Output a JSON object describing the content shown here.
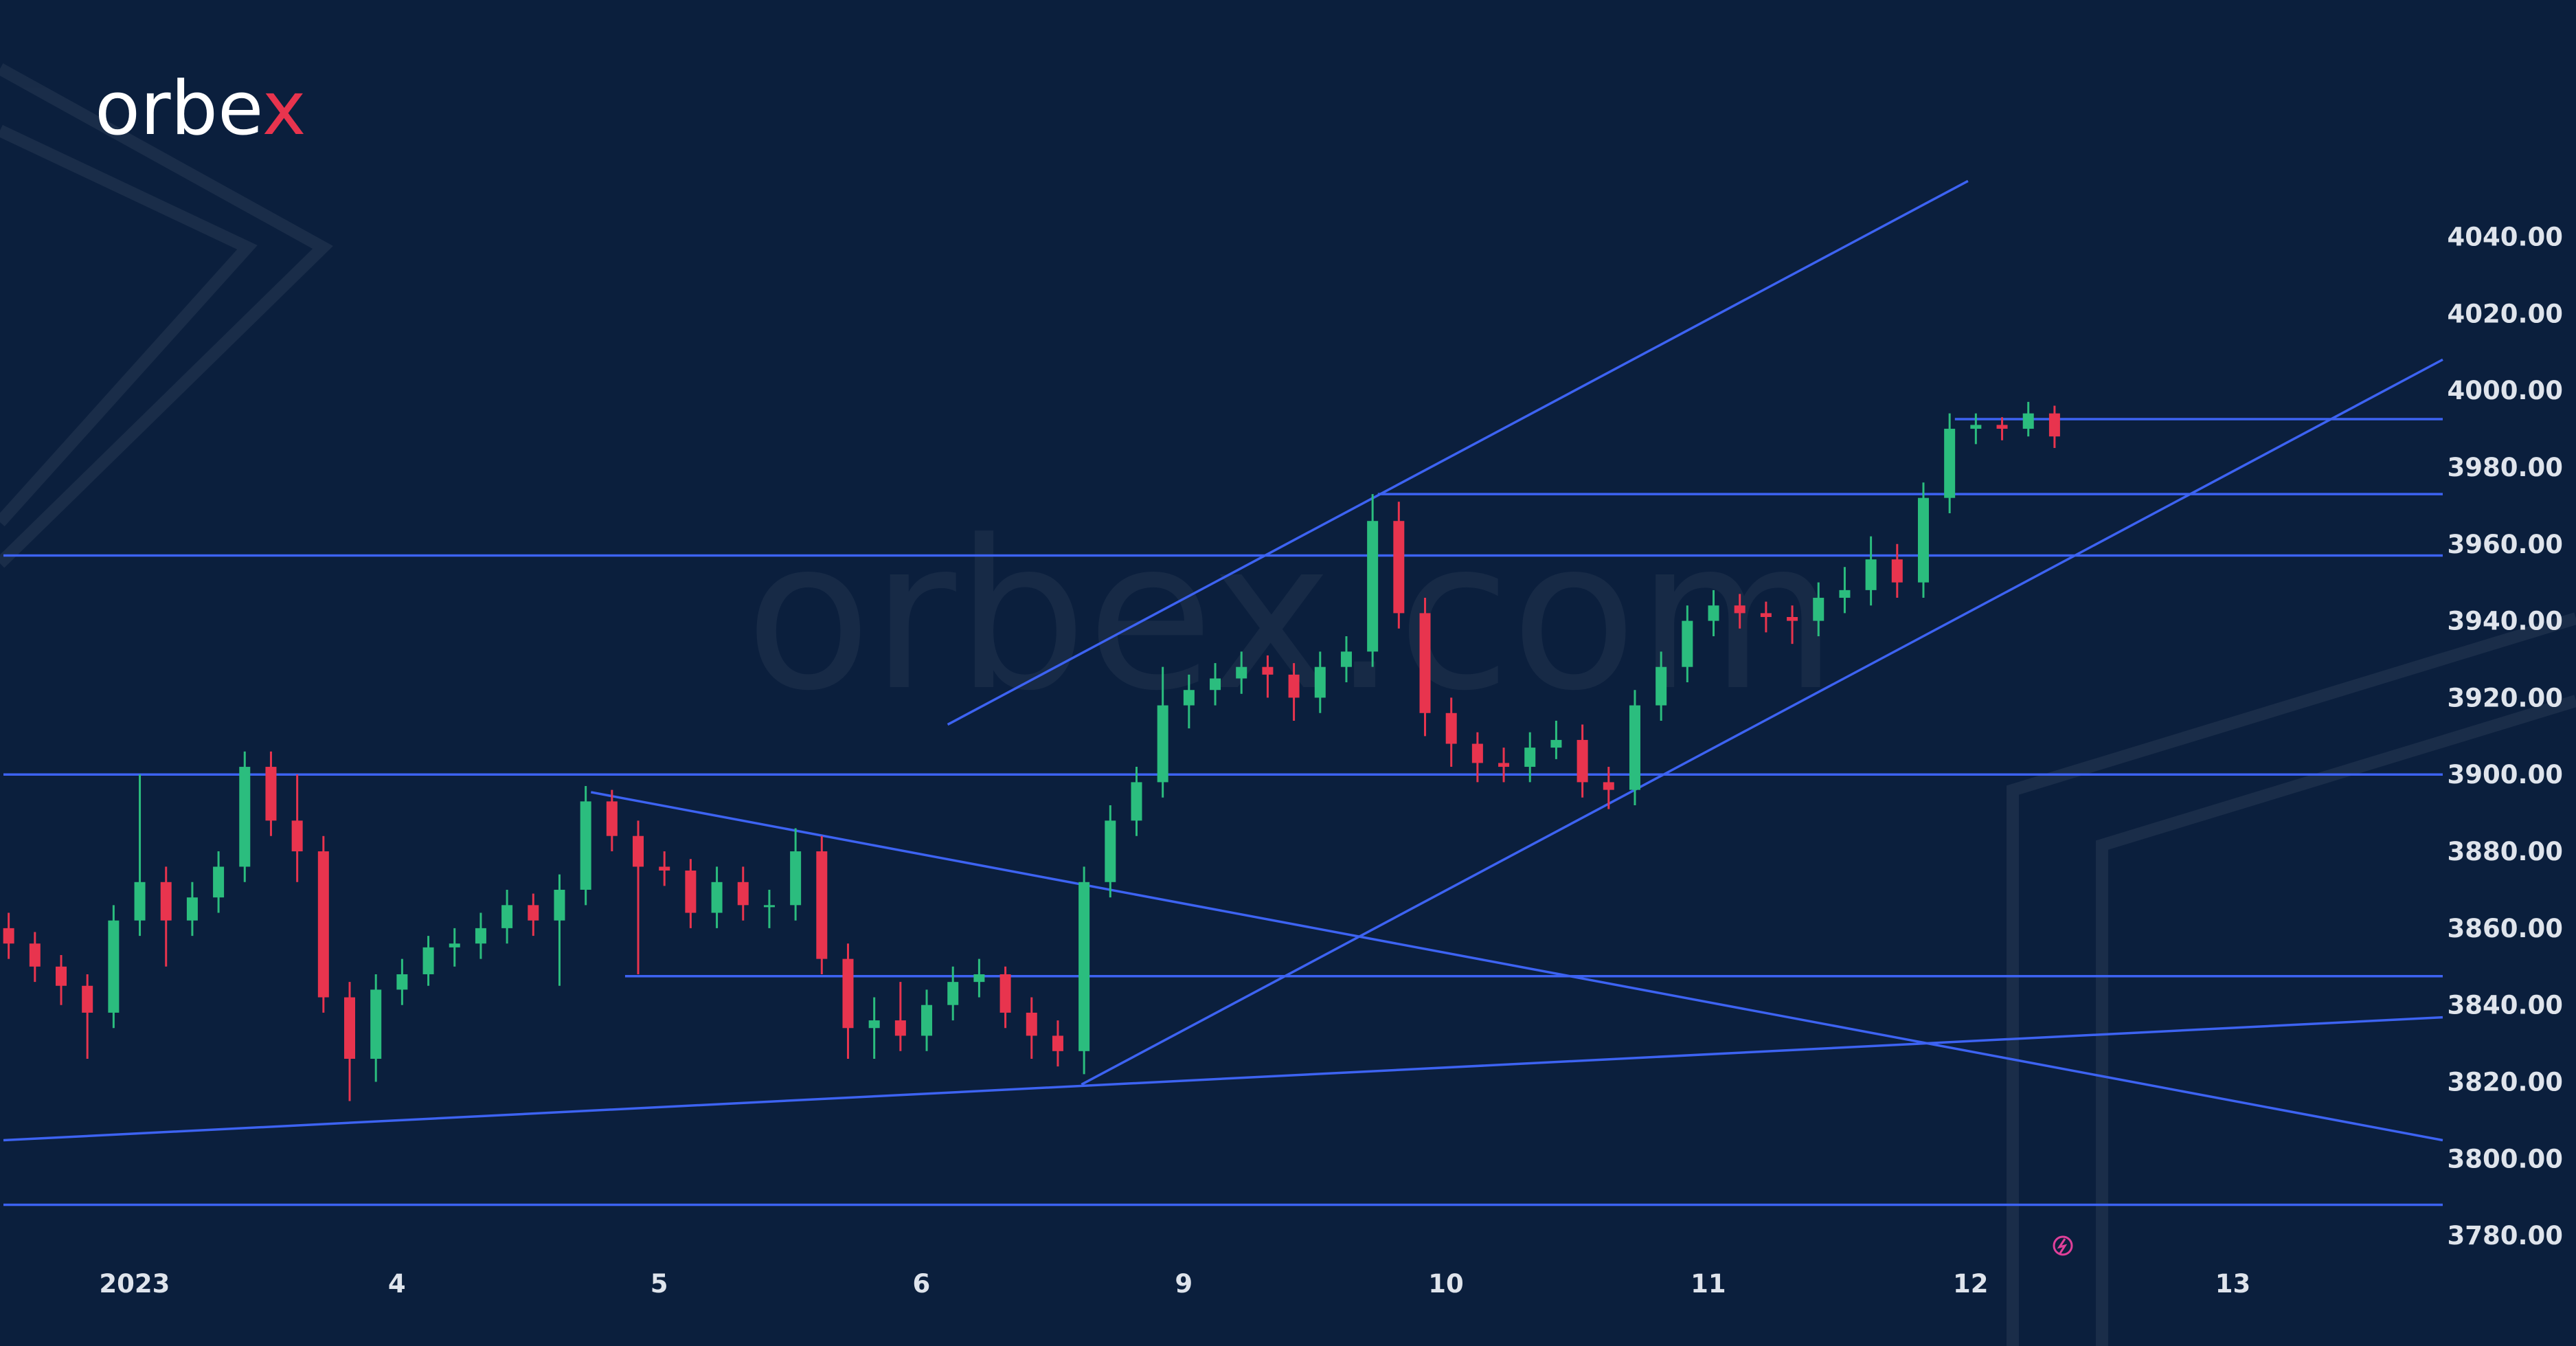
{
  "logo": {
    "main": "orbe",
    "accent": "x"
  },
  "watermark": "orbex.com",
  "chart_data": {
    "type": "candlestick",
    "colors": {
      "up": "#2bbd7e",
      "down": "#e8344e",
      "line": "#3d63f2"
    },
    "xlim": [
      -0.5,
      8.8
    ],
    "ylim": [
      3760,
      4100
    ],
    "xticks": [
      {
        "value": 0,
        "label": "2023"
      },
      {
        "value": 1,
        "label": "4"
      },
      {
        "value": 2,
        "label": "5"
      },
      {
        "value": 3,
        "label": "6"
      },
      {
        "value": 4,
        "label": "9"
      },
      {
        "value": 5,
        "label": "10"
      },
      {
        "value": 6,
        "label": "11"
      },
      {
        "value": 7,
        "label": "12"
      },
      {
        "value": 8,
        "label": "13"
      }
    ],
    "yticks": [
      {
        "value": 3780,
        "label": "3780.00"
      },
      {
        "value": 3800,
        "label": "3800.00"
      },
      {
        "value": 3820,
        "label": "3820.00"
      },
      {
        "value": 3840,
        "label": "3840.00"
      },
      {
        "value": 3860,
        "label": "3860.00"
      },
      {
        "value": 3880,
        "label": "3880.00"
      },
      {
        "value": 3900,
        "label": "3900.00"
      },
      {
        "value": 3920,
        "label": "3920.00"
      },
      {
        "value": 3940,
        "label": "3940.00"
      },
      {
        "value": 3960,
        "label": "3960.00"
      },
      {
        "value": 3980,
        "label": "3980.00"
      },
      {
        "value": 4000,
        "label": "4000.00"
      },
      {
        "value": 4020,
        "label": "4020.00"
      },
      {
        "value": 4040,
        "label": "4040.00"
      }
    ],
    "candles": {
      "x": [
        -0.48,
        -0.38,
        -0.28,
        -0.18,
        -0.08,
        0.02,
        0.12,
        0.22,
        0.32,
        0.42,
        0.52,
        0.62,
        0.72,
        0.82,
        0.92,
        1.02,
        1.12,
        1.22,
        1.32,
        1.42,
        1.52,
        1.62,
        1.72,
        1.82,
        1.92,
        2.02,
        2.12,
        2.22,
        2.32,
        2.42,
        2.52,
        2.62,
        2.72,
        2.82,
        2.92,
        3.02,
        3.12,
        3.22,
        3.32,
        3.42,
        3.52,
        3.62,
        3.72,
        3.82,
        3.92,
        4.02,
        4.12,
        4.22,
        4.32,
        4.42,
        4.52,
        4.62,
        4.72,
        4.82,
        4.92,
        5.02,
        5.12,
        5.22,
        5.32,
        5.42,
        5.52,
        5.62,
        5.72,
        5.82,
        5.92,
        6.02,
        6.12,
        6.22,
        6.32,
        6.42,
        6.52,
        6.62,
        6.72,
        6.82,
        6.92,
        7.02,
        7.12,
        7.22,
        7.32
      ],
      "open": [
        3860,
        3856,
        3850,
        3845,
        3838,
        3862,
        3872,
        3862,
        3868,
        3876,
        3902,
        3888,
        3880,
        3842,
        3826,
        3844,
        3848,
        3855,
        3856,
        3860,
        3866,
        3862,
        3870,
        3893,
        3884,
        3876,
        3875,
        3864,
        3872,
        3866,
        3866,
        3880,
        3852,
        3834,
        3836,
        3832,
        3840,
        3846,
        3848,
        3838,
        3832,
        3828,
        3872,
        3888,
        3898,
        3918,
        3922,
        3925,
        3928,
        3926,
        3920,
        3928,
        3932,
        3966,
        3942,
        3916,
        3908,
        3903,
        3902,
        3907,
        3909,
        3898,
        3896,
        3918,
        3928,
        3940,
        3944,
        3942,
        3941,
        3940,
        3946,
        3948,
        3956,
        3950,
        3972,
        3990,
        3991,
        3990,
        3994
      ],
      "high": [
        3864,
        3859,
        3853,
        3848,
        3866,
        3900,
        3876,
        3872,
        3880,
        3906,
        3906,
        3900,
        3884,
        3846,
        3848,
        3852,
        3858,
        3860,
        3864,
        3870,
        3869,
        3874,
        3897,
        3896,
        3888,
        3880,
        3878,
        3876,
        3876,
        3870,
        3886,
        3884,
        3856,
        3842,
        3846,
        3844,
        3850,
        3852,
        3850,
        3842,
        3836,
        3876,
        3892,
        3902,
        3928,
        3926,
        3929,
        3932,
        3931,
        3929,
        3932,
        3936,
        3973,
        3971,
        3946,
        3920,
        3911,
        3907,
        3911,
        3914,
        3913,
        3902,
        3922,
        3932,
        3944,
        3948,
        3947,
        3945,
        3944,
        3950,
        3954,
        3962,
        3960,
        3976,
        3994,
        3994,
        3993,
        3997,
        3996
      ],
      "low": [
        3852,
        3846,
        3840,
        3826,
        3834,
        3858,
        3850,
        3858,
        3864,
        3872,
        3884,
        3872,
        3838,
        3815,
        3820,
        3840,
        3845,
        3850,
        3852,
        3856,
        3858,
        3845,
        3866,
        3880,
        3848,
        3871,
        3860,
        3860,
        3862,
        3860,
        3862,
        3848,
        3826,
        3826,
        3828,
        3828,
        3836,
        3842,
        3834,
        3826,
        3824,
        3822,
        3868,
        3884,
        3894,
        3912,
        3918,
        3921,
        3920,
        3914,
        3916,
        3924,
        3928,
        3938,
        3910,
        3902,
        3898,
        3898,
        3898,
        3904,
        3894,
        3891,
        3892,
        3914,
        3924,
        3936,
        3938,
        3937,
        3934,
        3936,
        3942,
        3944,
        3946,
        3946,
        3968,
        3986,
        3987,
        3988,
        3985
      ],
      "close": [
        3856,
        3850,
        3845,
        3838,
        3862,
        3872,
        3862,
        3868,
        3876,
        3902,
        3888,
        3880,
        3842,
        3826,
        3844,
        3848,
        3855,
        3856,
        3860,
        3866,
        3862,
        3870,
        3893,
        3884,
        3876,
        3875,
        3864,
        3872,
        3866,
        3866,
        3880,
        3852,
        3834,
        3836,
        3832,
        3840,
        3846,
        3848,
        3838,
        3832,
        3828,
        3872,
        3888,
        3898,
        3918,
        3922,
        3925,
        3928,
        3926,
        3920,
        3928,
        3932,
        3966,
        3942,
        3916,
        3908,
        3903,
        3902,
        3907,
        3909,
        3898,
        3896,
        3918,
        3928,
        3940,
        3944,
        3942,
        3941,
        3940,
        3946,
        3948,
        3956,
        3950,
        3972,
        3990,
        3991,
        3990,
        3994,
        3988
      ]
    },
    "lines": [
      {
        "x": [
          -0.5,
          8.8
        ],
        "y": [
          3957,
          3957
        ]
      },
      {
        "x": [
          -0.5,
          8.8
        ],
        "y": [
          3900,
          3900
        ]
      },
      {
        "x": [
          -0.5,
          8.8
        ],
        "y": [
          3788,
          3788
        ]
      },
      {
        "x": [
          1.87,
          8.8
        ],
        "y": [
          3847.5,
          3847.5
        ]
      },
      {
        "x": [
          4.74,
          8.8
        ],
        "y": [
          3973,
          3973
        ]
      },
      {
        "x": [
          6.94,
          8.8
        ],
        "y": [
          3992.5,
          3992.5
        ]
      },
      {
        "x": [
          3.1,
          6.99
        ],
        "y": [
          3913,
          4054.5
        ]
      },
      {
        "x": [
          1.74,
          8.8
        ],
        "y": [
          3895.4,
          3804.8
        ]
      },
      {
        "x": [
          -0.5,
          8.8
        ],
        "y": [
          3804.8,
          3836.8
        ]
      },
      {
        "x": [
          3.61,
          8.8
        ],
        "y": [
          3819.3,
          4008
        ]
      }
    ]
  }
}
